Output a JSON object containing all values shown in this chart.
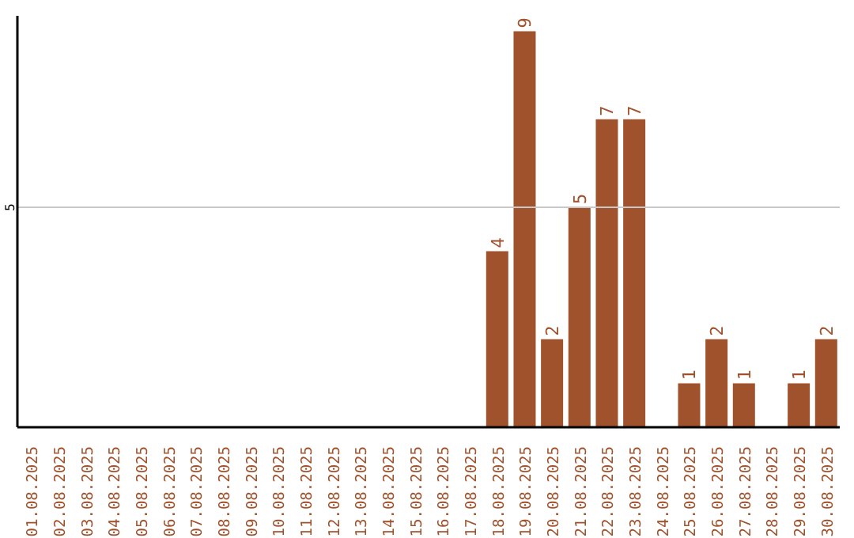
{
  "chart_data": {
    "type": "bar",
    "categories": [
      "01.08.2025",
      "02.08.2025",
      "03.08.2025",
      "04.08.2025",
      "05.08.2025",
      "06.08.2025",
      "07.08.2025",
      "08.08.2025",
      "09.08.2025",
      "10.08.2025",
      "11.08.2025",
      "12.08.2025",
      "13.08.2025",
      "14.08.2025",
      "15.08.2025",
      "16.08.2025",
      "17.08.2025",
      "18.08.2025",
      "19.08.2025",
      "20.08.2025",
      "21.08.2025",
      "22.08.2025",
      "23.08.2025",
      "24.08.2025",
      "25.08.2025",
      "26.08.2025",
      "27.08.2025",
      "28.08.2025",
      "29.08.2025",
      "30.08.2025"
    ],
    "values": [
      null,
      null,
      null,
      null,
      null,
      null,
      null,
      null,
      null,
      null,
      null,
      null,
      null,
      null,
      null,
      null,
      null,
      4,
      9,
      2,
      5,
      7,
      7,
      null,
      1,
      2,
      1,
      null,
      1,
      2
    ],
    "data_labels": true,
    "color": "#a0522d",
    "ylim": [
      0,
      9.35
    ],
    "yticks": [
      5
    ],
    "grid": "y"
  }
}
